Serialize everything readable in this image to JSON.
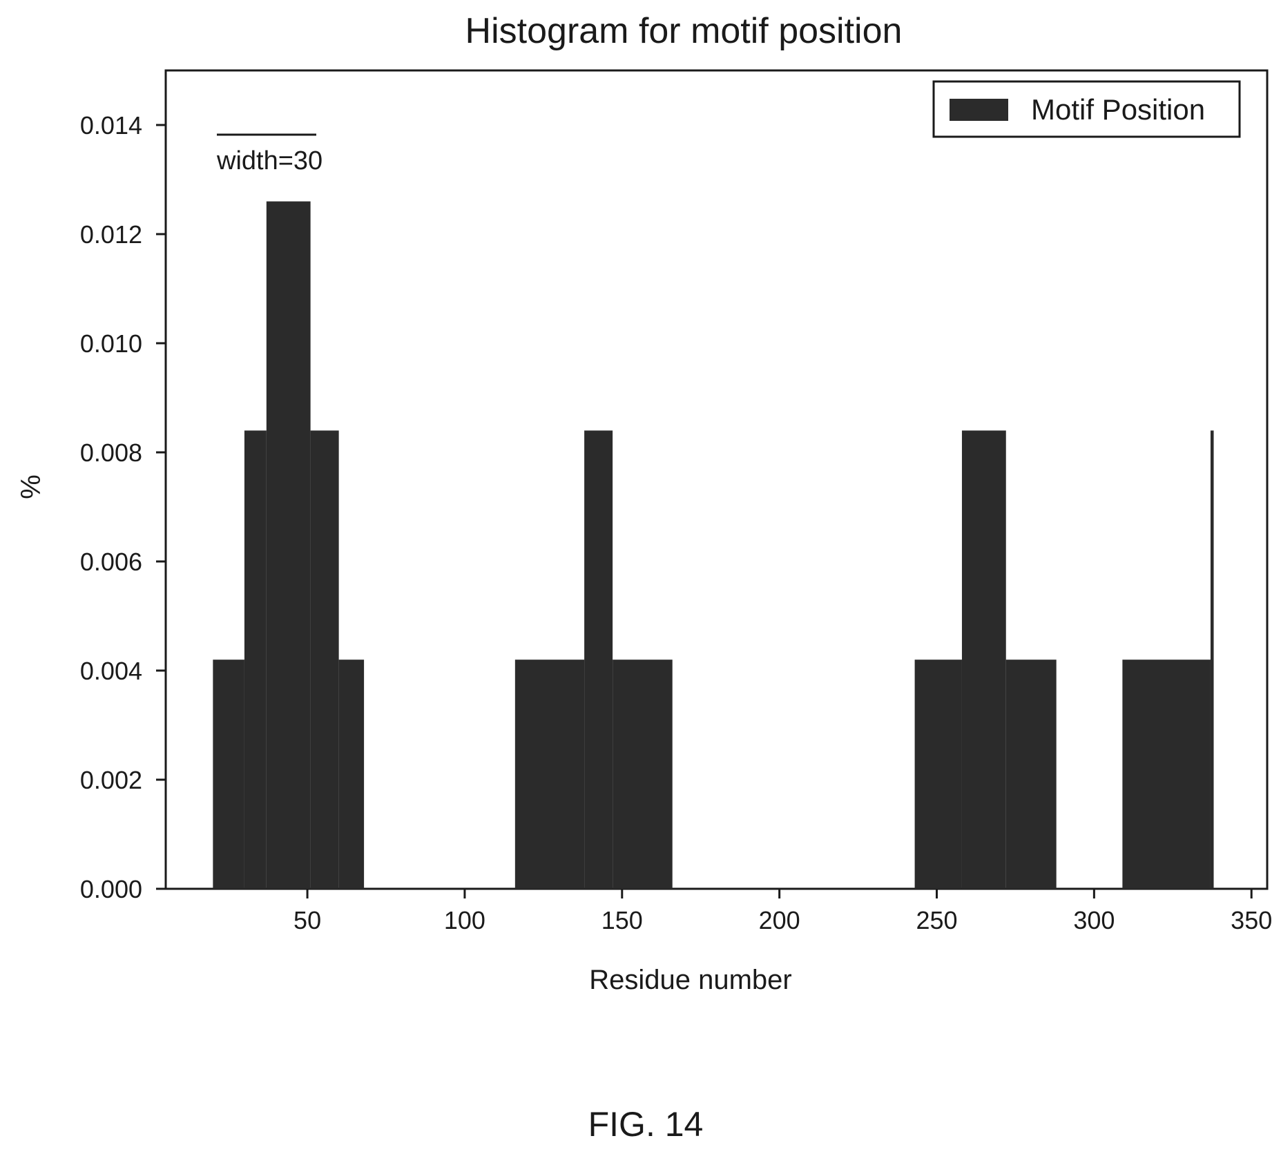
{
  "figure": {
    "caption": "FIG. 14"
  },
  "chart_data": {
    "type": "bar",
    "title": "Histogram for motif position",
    "xlabel": "Residue number",
    "ylabel": "%",
    "annotation": "width=30",
    "legend": {
      "entries": [
        "Motif Position"
      ],
      "placement": "top-right"
    },
    "xlim": [
      5,
      355
    ],
    "ylim": [
      0,
      0.015
    ],
    "x_ticks": [
      50,
      100,
      150,
      200,
      250,
      300,
      350
    ],
    "x_tick_labels": [
      "50",
      "100",
      "150",
      "200",
      "250",
      "300",
      "350"
    ],
    "y_ticks": [
      0,
      0.002,
      0.004,
      0.006,
      0.008,
      0.01,
      0.012,
      0.014
    ],
    "y_tick_labels": [
      "0.000",
      "0.002",
      "0.004",
      "0.006",
      "0.008",
      "0.010",
      "0.012",
      "0.014"
    ],
    "grid": false,
    "bar_color": "#2b2b2b",
    "series": [
      {
        "name": "Motif Position",
        "x_start": [
          20,
          30,
          37,
          51,
          60,
          116,
          138,
          147,
          243,
          258,
          272,
          309,
          337
        ],
        "x_end": [
          30,
          37,
          51,
          60,
          68,
          138,
          147,
          166,
          258,
          272,
          288,
          337,
          338
        ],
        "values": [
          0.0042,
          0.0084,
          0.0126,
          0.0084,
          0.0042,
          0.0042,
          0.0084,
          0.0042,
          0.0042,
          0.0084,
          0.0042,
          0.0042,
          0.0084
        ]
      }
    ]
  }
}
